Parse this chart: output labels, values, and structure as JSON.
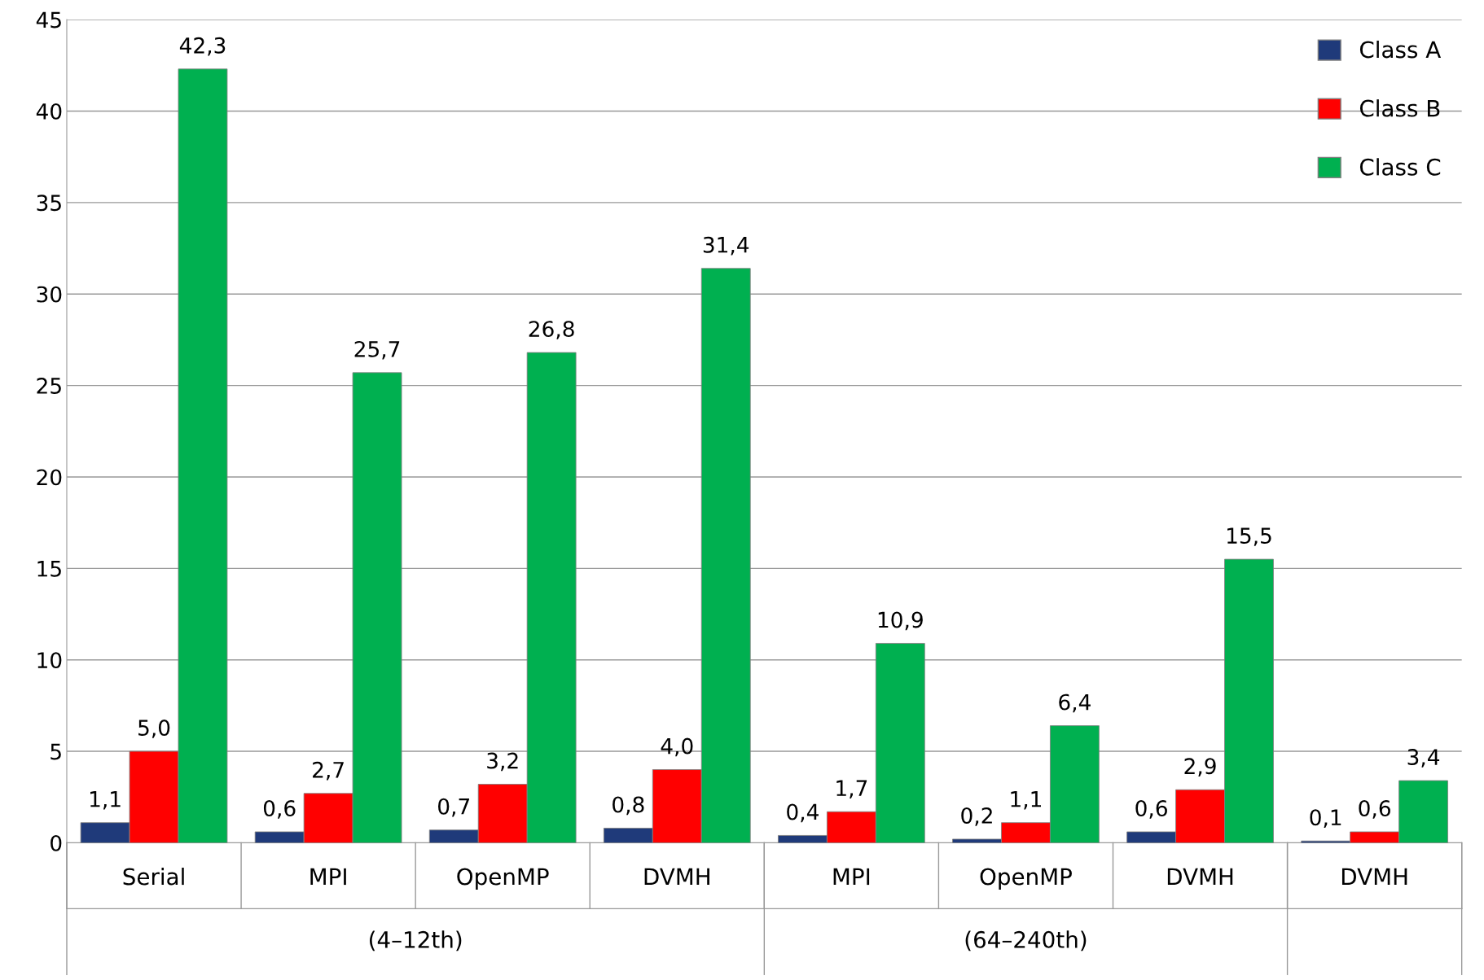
{
  "chart_data": {
    "type": "bar",
    "categories": [
      "Serial",
      "MPI",
      "OpenMP",
      "DVMH",
      "MPI",
      "OpenMP",
      "DVMH",
      "DVMH"
    ],
    "series": [
      {
        "name": "Class A",
        "color": "#1f3a7a",
        "values": [
          1.1,
          0.6,
          0.7,
          0.8,
          0.4,
          0.2,
          0.6,
          0.1
        ],
        "value_labels": [
          "1,1",
          "0,6",
          "0,7",
          "0,8",
          "0,4",
          "0,2",
          "0,6",
          "0,1"
        ]
      },
      {
        "name": "Class B",
        "color": "#ff0000",
        "values": [
          5.0,
          2.7,
          3.2,
          4.0,
          1.7,
          1.1,
          2.9,
          0.6
        ],
        "value_labels": [
          "5,0",
          "2,7",
          "3,2",
          "4,0",
          "1,7",
          "1,1",
          "2,9",
          "0,6"
        ]
      },
      {
        "name": "Class C",
        "color": "#00b050",
        "values": [
          42.3,
          25.7,
          26.8,
          31.4,
          10.9,
          6.4,
          15.5,
          3.4
        ],
        "value_labels": [
          "42,3",
          "25,7",
          "26,8",
          "31,4",
          "10,9",
          "6,4",
          "15,5",
          "3,4"
        ]
      }
    ],
    "annotations": [
      "(4–12th)",
      "(64–240th)"
    ],
    "ylim": [
      0,
      45
    ],
    "yticks": [
      0,
      5,
      10,
      15,
      20,
      25,
      30,
      35,
      40,
      45
    ],
    "grid": "y",
    "legend": "top right"
  }
}
